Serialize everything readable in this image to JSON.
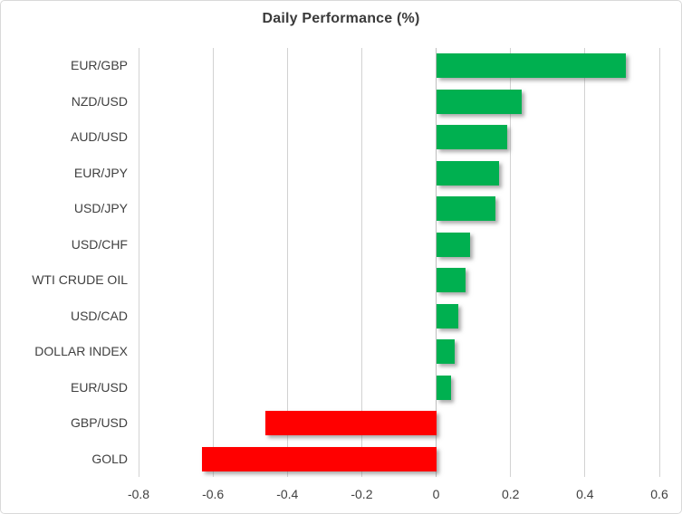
{
  "chart_data": {
    "type": "bar",
    "orientation": "horizontal",
    "title": "Daily Performance (%)",
    "categories": [
      "EUR/GBP",
      "NZD/USD",
      "AUD/USD",
      "EUR/JPY",
      "USD/JPY",
      "USD/CHF",
      "WTI CRUDE OIL",
      "USD/CAD",
      "DOLLAR INDEX",
      "EUR/USD",
      "GBP/USD",
      "GOLD"
    ],
    "values": [
      0.51,
      0.23,
      0.19,
      0.17,
      0.16,
      0.09,
      0.08,
      0.06,
      0.05,
      0.04,
      -0.46,
      -0.63
    ],
    "xlabel": "",
    "ylabel": "",
    "xlim": [
      -0.8,
      0.6
    ],
    "xticks": [
      -0.8,
      -0.6,
      -0.4,
      -0.2,
      0,
      0.2,
      0.4,
      0.6
    ],
    "xtick_labels": [
      "-0.8",
      "-0.6",
      "-0.4",
      "-0.2",
      "0",
      "0.2",
      "0.4",
      "0.6"
    ],
    "grid": true,
    "legend": "none",
    "colors": {
      "positive": "#00b050",
      "negative": "#ff0000",
      "gridline": "#d2d2d2",
      "zero_axis": "#bfbfbf",
      "title_text": "#3a3a3a",
      "label_text": "#404040",
      "border": "#d9d9d9",
      "background": "#ffffff"
    }
  }
}
